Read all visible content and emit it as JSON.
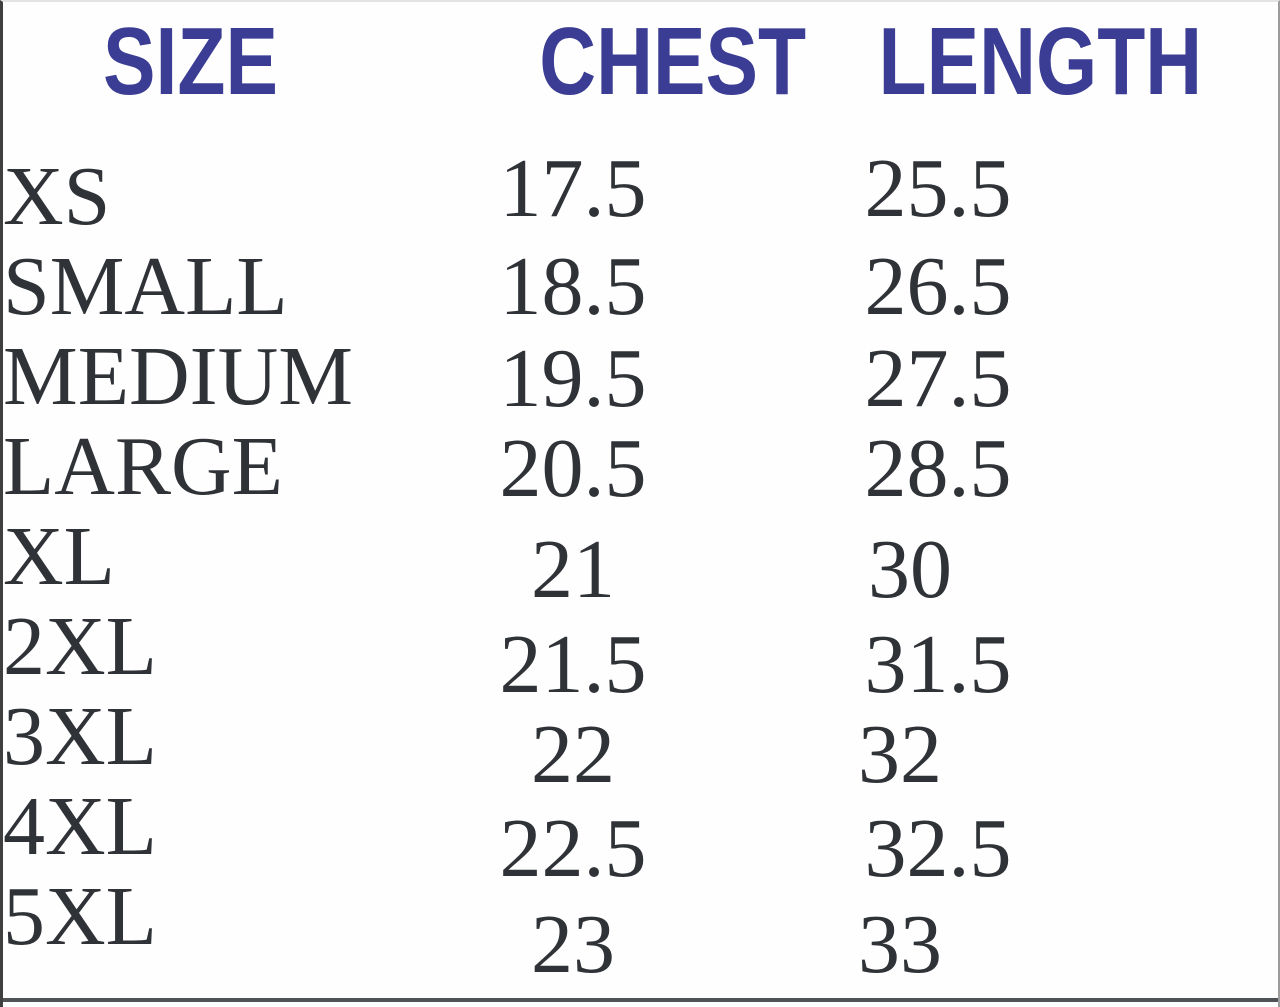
{
  "colors": {
    "header_blue": "#3a3d93",
    "data_text": "#2f3236",
    "background": "#fffeff",
    "frame_dark": "#3f3f3f",
    "frame_light": "#9c9c9c"
  },
  "headers": {
    "size": "SIZE",
    "chest": "CHEST",
    "length": "LENGTH"
  },
  "rows": [
    {
      "size": "XS",
      "chest": "17.5",
      "length": "25.5"
    },
    {
      "size": "SMALL",
      "chest": "18.5",
      "length": "26.5"
    },
    {
      "size": "MEDIUM",
      "chest": "19.5",
      "length": "27.5"
    },
    {
      "size": "LARGE",
      "chest": "20.5",
      "length": "28.5"
    },
    {
      "size": "XL",
      "chest": "21",
      "length": "30"
    },
    {
      "size": "2XL",
      "chest": "21.5",
      "length": "31.5"
    },
    {
      "size": "3XL",
      "chest": "22",
      "length": "32"
    },
    {
      "size": "4XL",
      "chest": "22.5",
      "length": "32.5"
    },
    {
      "size": "5XL",
      "chest": "23",
      "length": "33"
    }
  ]
}
